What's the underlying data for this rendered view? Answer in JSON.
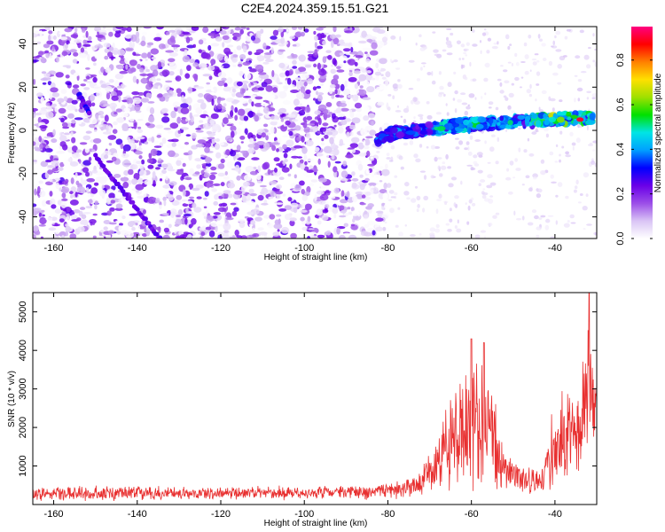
{
  "title": "C2E4.2024.359.15.51.G21",
  "chart_data": [
    {
      "type": "heatmap",
      "title": "C2E4.2024.359.15.51.G21",
      "xlabel": "Height of straight line (km)",
      "ylabel": "Frequency (Hz)",
      "xlim": [
        -165,
        -30
      ],
      "ylim": [
        -50,
        48
      ],
      "xticks": [
        "-160",
        "-140",
        "-120",
        "-100",
        "-80",
        "-60",
        "-40"
      ],
      "yticks": [
        "40",
        "20",
        "0",
        "-20",
        "-40"
      ],
      "colorbar": {
        "label": "Normalized spectral amplitude",
        "range": [
          0.0,
          0.95
        ],
        "ticks": [
          "0.0",
          "0.2",
          "0.4",
          "0.6",
          "0.8"
        ],
        "colormap": [
          "#ffffff",
          "#d9c4f5",
          "#9b4de8",
          "#6a00e8",
          "#0000ff",
          "#00a0ff",
          "#00e5e5",
          "#00e000",
          "#a0e000",
          "#ffe000",
          "#ff8000",
          "#ff0000",
          "#ff0080"
        ]
      },
      "features": {
        "noise_region_x": [
          -165,
          -80
        ],
        "noise_region_frequency": [
          -50,
          48
        ],
        "streak_1": {
          "x": [
            -154,
            -151.5
          ],
          "frequency": [
            17,
            8
          ]
        },
        "streak_2": {
          "x": [
            -150,
            -134.5
          ],
          "frequency": [
            -12,
            -50
          ]
        },
        "main_band": {
          "x": [
            -83,
            -31
          ],
          "frequency": [
            -5,
            6
          ]
        },
        "band_peak": {
          "x": -34,
          "frequency": 5,
          "amplitude": 0.95
        }
      }
    },
    {
      "type": "line",
      "xlabel": "Height of straight line (km)",
      "ylabel": "SNR (10 * v/v)",
      "xlim": [
        -165,
        -30
      ],
      "ylim": [
        0,
        5500
      ],
      "xticks": [
        "-160",
        "-140",
        "-120",
        "-100",
        "-80",
        "-60",
        "-40"
      ],
      "yticks": [
        "5000",
        "4000",
        "3000",
        "2000",
        "1000"
      ],
      "color": "#e83030",
      "envelope": [
        {
          "x": -165,
          "mean": 280,
          "amp": 200
        },
        {
          "x": -140,
          "mean": 300,
          "amp": 220
        },
        {
          "x": -120,
          "mean": 300,
          "amp": 200
        },
        {
          "x": -100,
          "mean": 300,
          "amp": 200
        },
        {
          "x": -85,
          "mean": 330,
          "amp": 220
        },
        {
          "x": -78,
          "mean": 380,
          "amp": 260
        },
        {
          "x": -72,
          "mean": 550,
          "amp": 380
        },
        {
          "x": -68,
          "mean": 1100,
          "amp": 900
        },
        {
          "x": -65,
          "mean": 1700,
          "amp": 1500
        },
        {
          "x": -62,
          "mean": 1800,
          "amp": 1700
        },
        {
          "x": -60,
          "mean": 2000,
          "amp": 1900
        },
        {
          "x": -58,
          "mean": 2300,
          "amp": 2000
        },
        {
          "x": -56,
          "mean": 2200,
          "amp": 1800
        },
        {
          "x": -54,
          "mean": 1500,
          "amp": 1200
        },
        {
          "x": -52,
          "mean": 900,
          "amp": 700
        },
        {
          "x": -48,
          "mean": 600,
          "amp": 450
        },
        {
          "x": -44,
          "mean": 600,
          "amp": 450
        },
        {
          "x": -42,
          "mean": 900,
          "amp": 700
        },
        {
          "x": -40,
          "mean": 1600,
          "amp": 1300
        },
        {
          "x": -38,
          "mean": 1900,
          "amp": 1400
        },
        {
          "x": -36,
          "mean": 1700,
          "amp": 1300
        },
        {
          "x": -34,
          "mean": 2100,
          "amp": 1500
        },
        {
          "x": -32,
          "mean": 3200,
          "amp": 2200
        },
        {
          "x": -31,
          "mean": 2700,
          "amp": 1800
        }
      ],
      "peaks": [
        {
          "x": -60,
          "y": 4300
        },
        {
          "x": -57,
          "y": 4200
        },
        {
          "x": -31.8,
          "y": 5500
        }
      ]
    }
  ]
}
